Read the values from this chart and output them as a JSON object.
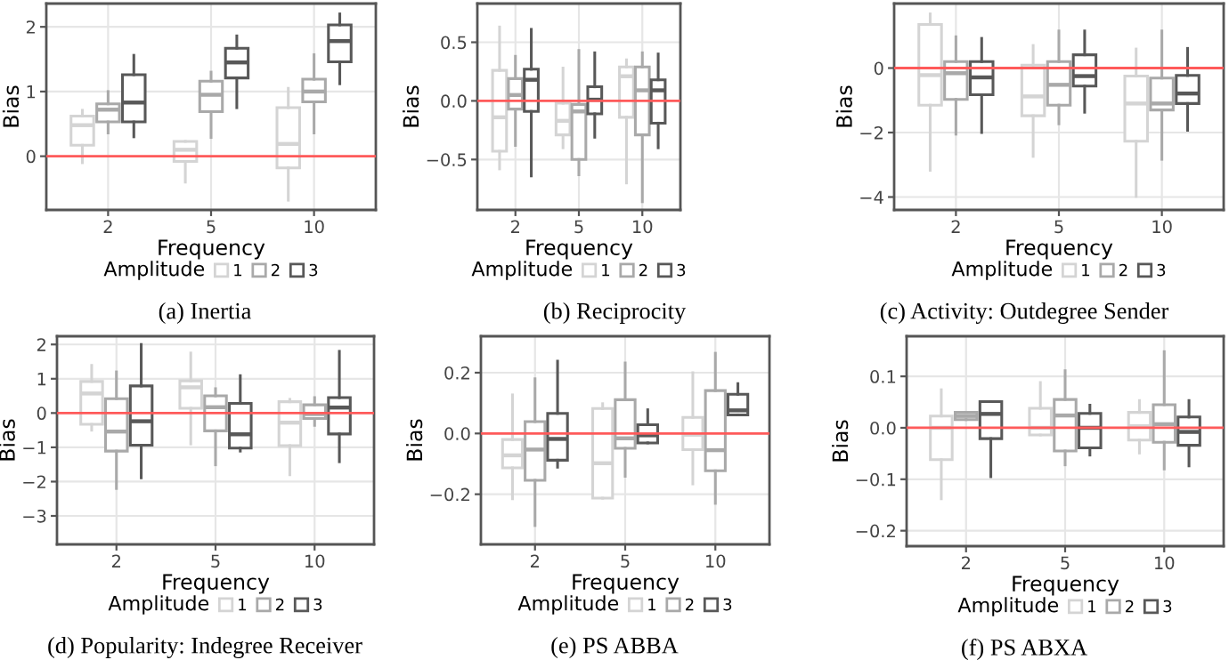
{
  "chart_data": [
    {
      "type": "box",
      "title": "(a) Inertia",
      "xlabel": "Frequency",
      "ylabel": "Bias",
      "legend_title": "Amplitude",
      "legend": "bottom",
      "grid": true,
      "categories": [
        "2",
        "5",
        "10"
      ],
      "ylim": [
        -0.83,
        2.36
      ],
      "yticks": [
        0,
        1,
        2
      ],
      "ref_lines": [
        {
          "axis": "y",
          "value": 0,
          "color": "#ff5a5a"
        }
      ],
      "series": [
        {
          "name": "1",
          "color": "#d4d4d4",
          "boxes": [
            {
              "low": -0.1,
              "q1": 0.17,
              "median": 0.48,
              "q3": 0.62,
              "high": 0.71
            },
            {
              "low": -0.4,
              "q1": -0.08,
              "median": 0.1,
              "q3": 0.23,
              "high": 0.23
            },
            {
              "low": -0.68,
              "q1": -0.18,
              "median": 0.19,
              "q3": 0.75,
              "high": 1.05
            }
          ]
        },
        {
          "name": "2",
          "color": "#a9a9a9",
          "boxes": [
            {
              "low": 0.36,
              "q1": 0.53,
              "median": 0.72,
              "q3": 0.81,
              "high": 1.0
            },
            {
              "low": 0.29,
              "q1": 0.69,
              "median": 0.95,
              "q3": 1.16,
              "high": 1.3
            },
            {
              "low": 0.36,
              "q1": 0.84,
              "median": 1.0,
              "q3": 1.19,
              "high": 1.57
            }
          ]
        },
        {
          "name": "3",
          "color": "#585858",
          "boxes": [
            {
              "low": 0.3,
              "q1": 0.53,
              "median": 0.83,
              "q3": 1.26,
              "high": 1.56
            },
            {
              "low": 0.75,
              "q1": 1.21,
              "median": 1.45,
              "q3": 1.67,
              "high": 1.86
            },
            {
              "low": 1.12,
              "q1": 1.46,
              "median": 1.78,
              "q3": 2.03,
              "high": 2.2
            }
          ]
        }
      ]
    },
    {
      "type": "box",
      "title": "(b) Reciprocity",
      "xlabel": "Frequency",
      "ylabel": "Bias",
      "legend_title": "Amplitude",
      "legend": "bottom",
      "grid": true,
      "categories": [
        "2",
        "5",
        "10"
      ],
      "ylim": [
        -0.93,
        0.83
      ],
      "yticks": [
        {
          "value": -0.5,
          "label": "−0.5"
        },
        {
          "value": 0,
          "label": "0.0"
        },
        {
          "value": 0.5,
          "label": "0.5"
        }
      ],
      "ref_lines": [
        {
          "axis": "y",
          "value": 0,
          "color": "#ff5a5a"
        }
      ],
      "series": [
        {
          "name": "1",
          "color": "#d4d4d4",
          "boxes": [
            {
              "low": -0.58,
              "q1": -0.43,
              "median": -0.14,
              "q3": 0.26,
              "high": 0.63
            },
            {
              "low": -0.4,
              "q1": -0.29,
              "median": -0.17,
              "q3": -0.02,
              "high": 0.28
            },
            {
              "low": -0.7,
              "q1": -0.14,
              "median": 0.21,
              "q3": 0.29,
              "high": 0.35
            }
          ]
        },
        {
          "name": "2",
          "color": "#a9a9a9",
          "boxes": [
            {
              "low": -0.38,
              "q1": -0.07,
              "median": 0.05,
              "q3": 0.19,
              "high": 0.38
            },
            {
              "low": -0.63,
              "q1": -0.5,
              "median": -0.09,
              "q3": -0.03,
              "high": 0.43
            },
            {
              "low": -0.86,
              "q1": -0.29,
              "median": 0.09,
              "q3": 0.29,
              "high": 0.41
            }
          ]
        },
        {
          "name": "3",
          "color": "#585858",
          "boxes": [
            {
              "low": -0.64,
              "q1": -0.09,
              "median": 0.18,
              "q3": 0.27,
              "high": 0.61
            },
            {
              "low": -0.31,
              "q1": -0.11,
              "median": 0.01,
              "q3": 0.12,
              "high": 0.41
            },
            {
              "low": -0.4,
              "q1": -0.19,
              "median": 0.09,
              "q3": 0.18,
              "high": 0.4
            }
          ]
        }
      ]
    },
    {
      "type": "box",
      "title": "(c) Activity: Outdegree Sender",
      "xlabel": "Frequency",
      "ylabel": "Bias",
      "legend_title": "Amplitude",
      "legend": "bottom",
      "grid": true,
      "categories": [
        "2",
        "5",
        "10"
      ],
      "ylim": [
        -4.4,
        2.0
      ],
      "yticks": [
        {
          "value": -4,
          "label": "−4"
        },
        {
          "value": -2,
          "label": "−2"
        },
        0
      ],
      "ref_lines": [
        {
          "axis": "y",
          "value": 0,
          "color": "#ff5a5a"
        }
      ],
      "series": [
        {
          "name": "1",
          "color": "#d4d4d4",
          "boxes": [
            {
              "low": -3.17,
              "q1": -1.15,
              "median": -0.22,
              "q3": 1.35,
              "high": 1.68
            },
            {
              "low": -2.74,
              "q1": -1.48,
              "median": -0.88,
              "q3": 0.09,
              "high": 0.7
            },
            {
              "low": -3.98,
              "q1": -2.27,
              "median": -1.1,
              "q3": -0.25,
              "high": 0.59
            }
          ]
        },
        {
          "name": "2",
          "color": "#a9a9a9",
          "boxes": [
            {
              "low": -2.05,
              "q1": -0.97,
              "median": -0.16,
              "q3": 0.2,
              "high": 0.97
            },
            {
              "low": -1.73,
              "q1": -1.15,
              "median": -0.52,
              "q3": 0.2,
              "high": 1.15
            },
            {
              "low": -2.83,
              "q1": -1.3,
              "median": -1.1,
              "q3": -0.31,
              "high": 1.15
            }
          ]
        },
        {
          "name": "3",
          "color": "#585858",
          "boxes": [
            {
              "low": -2.0,
              "q1": -0.83,
              "median": -0.29,
              "q3": 0.2,
              "high": 0.92
            },
            {
              "low": -1.37,
              "q1": -0.56,
              "median": -0.25,
              "q3": 0.41,
              "high": 1.15
            },
            {
              "low": -1.93,
              "q1": -1.1,
              "median": -0.79,
              "q3": -0.23,
              "high": 0.61
            }
          ]
        }
      ]
    },
    {
      "type": "box",
      "title": "(d) Popularity: Indegree Receiver",
      "xlabel": "Frequency",
      "ylabel": "Bias",
      "legend_title": "Amplitude",
      "legend": "bottom",
      "grid": true,
      "categories": [
        "2",
        "5",
        "10"
      ],
      "ylim": [
        -3.83,
        2.24
      ],
      "yticks": [
        {
          "value": -3,
          "label": "−3"
        },
        {
          "value": -2,
          "label": "−2"
        },
        {
          "value": -1,
          "label": "−1"
        },
        0,
        1,
        2
      ],
      "ref_lines": [
        {
          "axis": "y",
          "value": 0,
          "color": "#ff5a5a"
        }
      ],
      "series": [
        {
          "name": "1",
          "color": "#d4d4d4",
          "boxes": [
            {
              "low": -0.5,
              "q1": -0.33,
              "median": 0.57,
              "q3": 0.92,
              "high": 1.39
            },
            {
              "low": -0.9,
              "q1": 0.14,
              "median": 0.75,
              "q3": 0.94,
              "high": 1.75
            },
            {
              "low": -1.8,
              "q1": -0.95,
              "median": -0.28,
              "q3": 0.33,
              "high": 0.4
            }
          ]
        },
        {
          "name": "2",
          "color": "#a9a9a9",
          "boxes": [
            {
              "low": -2.2,
              "q1": -1.11,
              "median": -0.54,
              "q3": 0.42,
              "high": 1.2
            },
            {
              "low": -1.51,
              "q1": -0.52,
              "median": 0.17,
              "q3": 0.5,
              "high": 0.71
            },
            {
              "low": -0.36,
              "q1": -0.16,
              "median": -0.03,
              "q3": 0.24,
              "high": 0.45
            }
          ]
        },
        {
          "name": "3",
          "color": "#585858",
          "boxes": [
            {
              "low": -1.89,
              "q1": -0.94,
              "median": -0.24,
              "q3": 0.79,
              "high": 2.0
            },
            {
              "low": -1.11,
              "q1": -1.02,
              "median": -0.62,
              "q3": 0.28,
              "high": 1.09
            },
            {
              "low": -1.42,
              "q1": -0.61,
              "median": 0.16,
              "q3": 0.45,
              "high": 1.8
            }
          ]
        }
      ]
    },
    {
      "type": "box",
      "title": "(e) PS ABBA",
      "xlabel": "Frequency",
      "ylabel": "Bias",
      "legend_title": "Amplitude",
      "legend": "bottom",
      "grid": true,
      "categories": [
        "2",
        "5",
        "10"
      ],
      "ylim": [
        -0.365,
        0.32
      ],
      "yticks": [
        {
          "value": -0.2,
          "label": "−0.2"
        },
        {
          "value": 0,
          "label": "0.0"
        },
        {
          "value": 0.2,
          "label": "0.2"
        }
      ],
      "ref_lines": [
        {
          "axis": "y",
          "value": 0,
          "color": "#ff5a5a"
        }
      ],
      "series": [
        {
          "name": "1",
          "color": "#d4d4d4",
          "boxes": [
            {
              "low": -0.215,
              "q1": -0.113,
              "median": -0.072,
              "q3": -0.02,
              "high": 0.127
            },
            {
              "low": -0.213,
              "q1": -0.213,
              "median": -0.098,
              "q3": 0.082,
              "high": 0.098
            },
            {
              "low": -0.166,
              "q1": -0.053,
              "median": -0.004,
              "q3": 0.053,
              "high": 0.2
            }
          ]
        },
        {
          "name": "2",
          "color": "#a9a9a9",
          "boxes": [
            {
              "low": -0.303,
              "q1": -0.154,
              "median": -0.053,
              "q3": 0.039,
              "high": 0.18
            },
            {
              "low": -0.141,
              "q1": -0.049,
              "median": -0.016,
              "q3": 0.111,
              "high": 0.232
            },
            {
              "low": -0.23,
              "q1": -0.123,
              "median": -0.055,
              "q3": 0.141,
              "high": 0.264
            }
          ]
        },
        {
          "name": "3",
          "color": "#585858",
          "boxes": [
            {
              "low": -0.111,
              "q1": -0.088,
              "median": -0.018,
              "q3": 0.066,
              "high": 0.238
            },
            {
              "low": -0.031,
              "q1": -0.031,
              "median": -0.006,
              "q3": 0.029,
              "high": 0.078
            },
            {
              "low": 0.061,
              "q1": 0.061,
              "median": 0.076,
              "q3": 0.129,
              "high": 0.164
            }
          ]
        }
      ]
    },
    {
      "type": "box",
      "title": "(f) PS ABXA",
      "xlabel": "Frequency",
      "ylabel": "Bias",
      "legend_title": "Amplitude",
      "legend": "bottom",
      "grid": true,
      "categories": [
        "2",
        "5",
        "10"
      ],
      "ylim": [
        -0.23,
        0.178
      ],
      "yticks": [
        {
          "value": -0.2,
          "label": "−0.2"
        },
        {
          "value": -0.1,
          "label": "−0.1"
        },
        {
          "value": 0,
          "label": "0.0"
        },
        {
          "value": 0.1,
          "label": "0.1"
        }
      ],
      "ref_lines": [
        {
          "axis": "y",
          "value": 0,
          "color": "#ff5a5a"
        }
      ],
      "series": [
        {
          "name": "1",
          "color": "#d4d4d4",
          "boxes": [
            {
              "low": -0.138,
              "q1": -0.062,
              "median": 0.0,
              "q3": 0.023,
              "high": 0.074
            },
            {
              "low": -0.014,
              "q1": -0.014,
              "median": 0.0,
              "q3": 0.038,
              "high": 0.088
            },
            {
              "low": -0.049,
              "q1": -0.024,
              "median": 0.003,
              "q3": 0.03,
              "high": 0.053
            }
          ]
        },
        {
          "name": "2",
          "color": "#a9a9a9",
          "boxes": [
            {
              "low": 0.016,
              "q1": 0.016,
              "median": 0.023,
              "q3": 0.03,
              "high": 0.03
            },
            {
              "low": -0.072,
              "q1": -0.045,
              "median": 0.024,
              "q3": 0.055,
              "high": 0.111
            },
            {
              "low": -0.08,
              "q1": -0.028,
              "median": 0.007,
              "q3": 0.045,
              "high": 0.148
            }
          ]
        },
        {
          "name": "3",
          "color": "#585858",
          "boxes": [
            {
              "low": -0.095,
              "q1": -0.021,
              "median": 0.027,
              "q3": 0.051,
              "high": 0.051
            },
            {
              "low": -0.053,
              "q1": -0.039,
              "median": 0.0,
              "q3": 0.028,
              "high": 0.044
            },
            {
              "low": -0.074,
              "q1": -0.034,
              "median": -0.008,
              "q3": 0.021,
              "high": 0.053
            }
          ]
        }
      ]
    }
  ]
}
